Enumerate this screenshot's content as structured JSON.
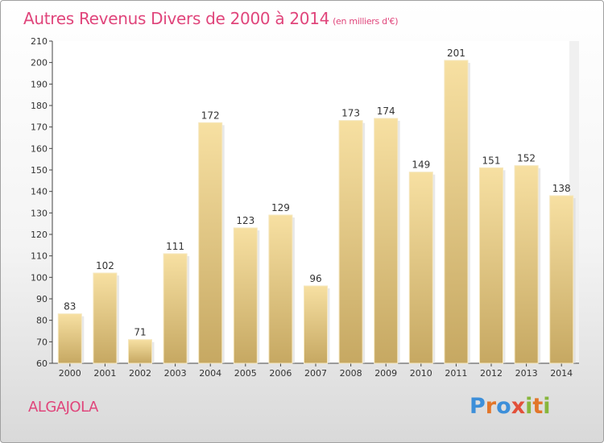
{
  "title": "Autres Revenus Divers de 2000 à 2014",
  "subtitle": "(en milliers d'€)",
  "commune": "ALGAJOLA",
  "logo": {
    "text": "Proxiti",
    "letters": [
      "P",
      "r",
      "o",
      "x",
      "i",
      "t",
      "i"
    ]
  },
  "colors": {
    "title": "#e0457b",
    "bar_light": "#f7e0a2",
    "bar_dark": "#c6a862",
    "logo": [
      "#3d8fd9",
      "#e2762a",
      "#3d8fd9",
      "#e2503a",
      "#87b63b",
      "#e2762a",
      "#87b63b"
    ]
  },
  "chart_data": {
    "type": "bar",
    "title": "Autres Revenus Divers de 2000 à 2014",
    "subtitle": "(en milliers d'€)",
    "categories": [
      "2000",
      "2001",
      "2002",
      "2003",
      "2004",
      "2005",
      "2006",
      "2007",
      "2008",
      "2009",
      "2010",
      "2011",
      "2012",
      "2013",
      "2014"
    ],
    "values": [
      83,
      102,
      71,
      111,
      172,
      123,
      129,
      96,
      173,
      174,
      149,
      201,
      151,
      152,
      138
    ],
    "ylim": [
      60,
      210
    ],
    "yticks": [
      60,
      70,
      80,
      90,
      100,
      110,
      120,
      130,
      140,
      150,
      160,
      170,
      180,
      190,
      200,
      210
    ],
    "grid": false
  }
}
